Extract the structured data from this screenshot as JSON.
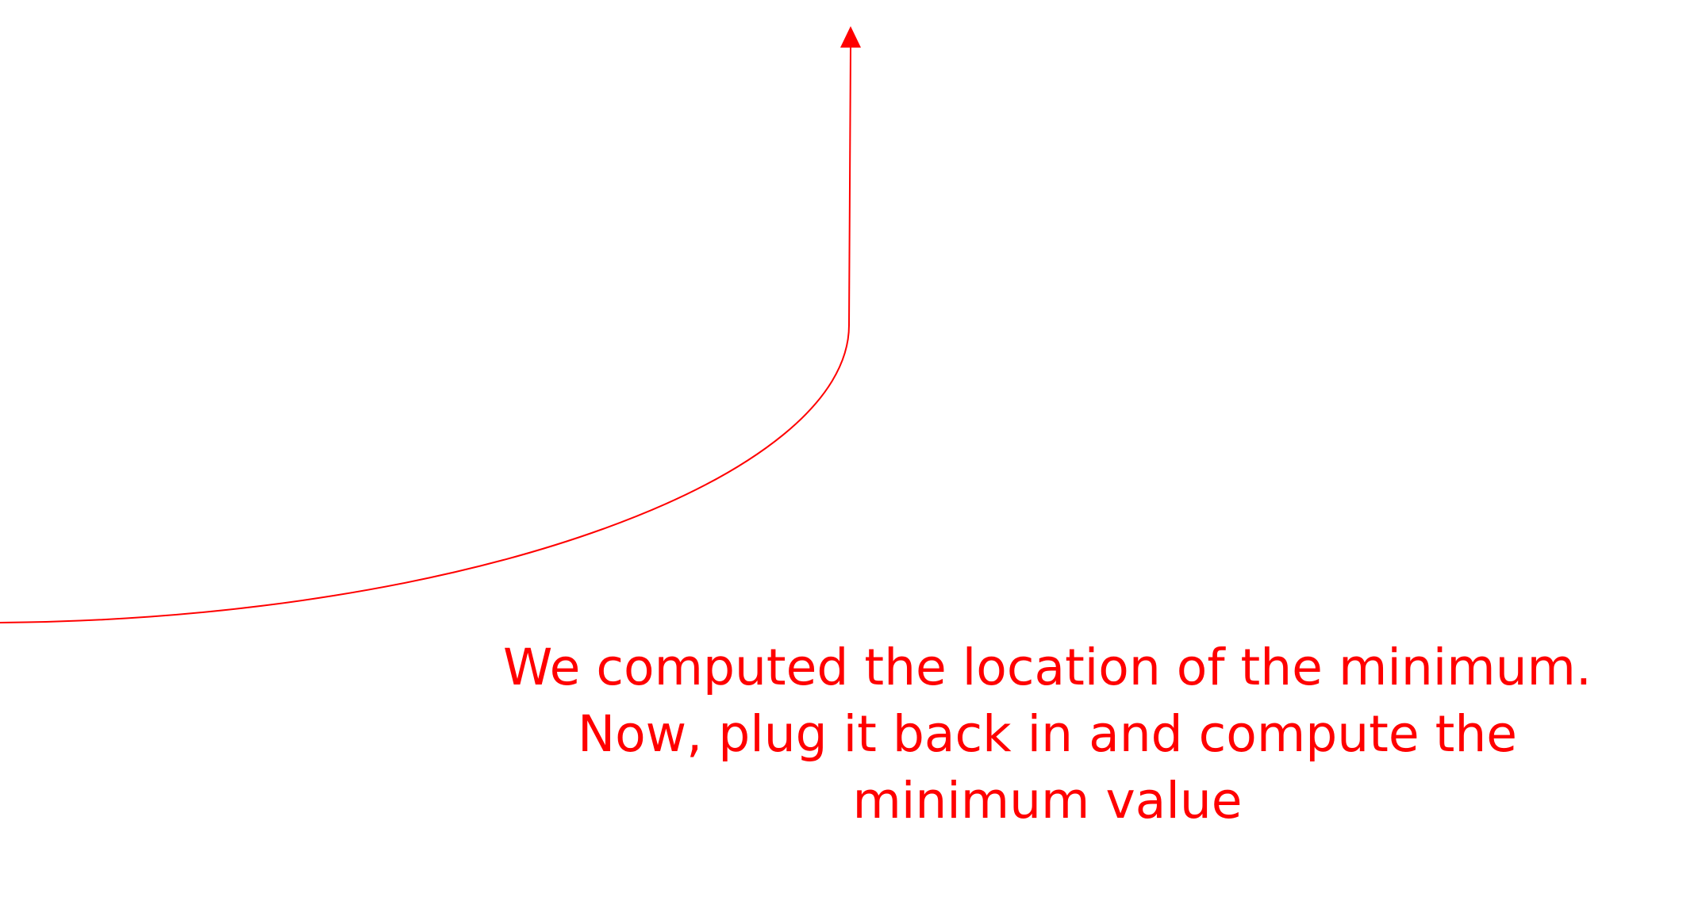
{
  "annotation": {
    "lines": [
      "We computed the location of the minimum.",
      "Now, plug it back in and compute the",
      "minimum value"
    ],
    "color": "#ff0000"
  },
  "arrow": {
    "color": "#ff0000",
    "head": "arrow-up-icon"
  }
}
